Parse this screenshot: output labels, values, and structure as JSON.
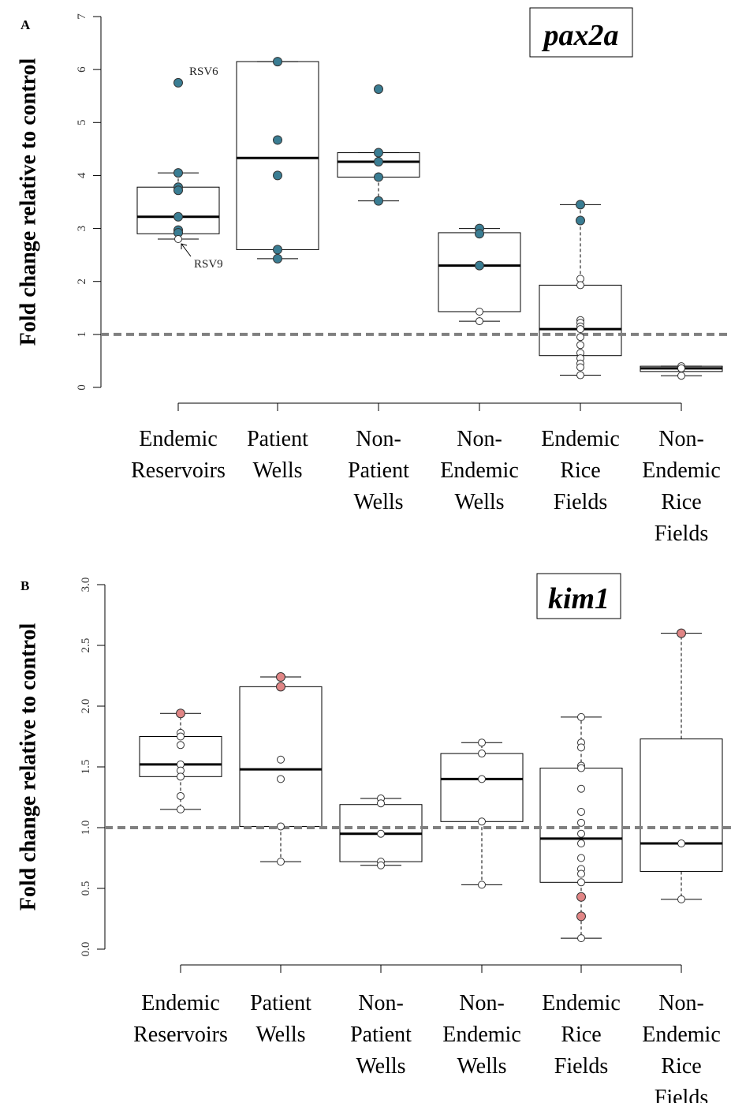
{
  "colors": {
    "pax2a_highlight": "#3a7d93",
    "kim1_highlight": "#e08585",
    "reference_line": "#808080",
    "open_point": "#ffffff"
  },
  "chart_data": [
    {
      "panel": "A",
      "type": "box",
      "title": "pax2a",
      "ylabel": "Fold change relative to control",
      "ylim": [
        0,
        7
      ],
      "yticks": [
        "0",
        "1",
        "2",
        "3",
        "4",
        "5",
        "6",
        "7"
      ],
      "reference_line": 1,
      "categories": [
        [
          "Endemic",
          "Reservoirs"
        ],
        [
          "Patient",
          "Wells"
        ],
        [
          "Non-",
          "Patient",
          "Wells"
        ],
        [
          "Non-",
          "Endemic",
          "Wells"
        ],
        [
          "Endemic",
          "Rice",
          "Fields"
        ],
        [
          "Non-",
          "Endemic",
          "Rice",
          "Fields"
        ]
      ],
      "boxes": [
        {
          "whisker_low": 2.8,
          "q1": 2.9,
          "median": 3.22,
          "q3": 3.78,
          "whisker_high": 4.05
        },
        {
          "whisker_low": 2.43,
          "q1": 2.6,
          "median": 4.33,
          "q3": 6.15,
          "whisker_high": 6.15
        },
        {
          "whisker_low": 3.52,
          "q1": 3.97,
          "median": 4.26,
          "q3": 4.43,
          "whisker_high": 4.43
        },
        {
          "whisker_low": 1.25,
          "q1": 1.43,
          "median": 2.3,
          "q3": 2.92,
          "whisker_high": 3.0
        },
        {
          "whisker_low": 0.23,
          "q1": 0.6,
          "median": 1.1,
          "q3": 1.93,
          "whisker_high": 3.45
        },
        {
          "whisker_low": 0.22,
          "q1": 0.3,
          "median": 0.36,
          "q3": 0.4,
          "whisker_high": 0.4
        }
      ],
      "points": [
        [
          {
            "y": 5.75,
            "highlight": true
          },
          {
            "y": 4.05,
            "highlight": true
          },
          {
            "y": 3.78,
            "highlight": true
          },
          {
            "y": 3.72,
            "highlight": true
          },
          {
            "y": 3.22,
            "highlight": true
          },
          {
            "y": 2.97,
            "highlight": true
          },
          {
            "y": 2.92,
            "highlight": true
          },
          {
            "y": 2.8,
            "highlight": false
          }
        ],
        [
          {
            "y": 6.15,
            "highlight": true
          },
          {
            "y": 4.67,
            "highlight": true
          },
          {
            "y": 4.0,
            "highlight": true
          },
          {
            "y": 2.6,
            "highlight": true
          },
          {
            "y": 2.43,
            "highlight": true
          }
        ],
        [
          {
            "y": 5.63,
            "highlight": true
          },
          {
            "y": 4.43,
            "highlight": true
          },
          {
            "y": 4.26,
            "highlight": true
          },
          {
            "y": 3.97,
            "highlight": true
          },
          {
            "y": 3.52,
            "highlight": true
          }
        ],
        [
          {
            "y": 3.0,
            "highlight": true
          },
          {
            "y": 2.9,
            "highlight": true
          },
          {
            "y": 2.3,
            "highlight": true
          },
          {
            "y": 1.43,
            "highlight": false
          },
          {
            "y": 1.25,
            "highlight": false
          }
        ],
        [
          {
            "y": 3.45,
            "highlight": true
          },
          {
            "y": 3.15,
            "highlight": true
          },
          {
            "y": 2.05,
            "highlight": false
          },
          {
            "y": 1.93,
            "highlight": false
          },
          {
            "y": 1.27,
            "highlight": false
          },
          {
            "y": 1.22,
            "highlight": false
          },
          {
            "y": 1.15,
            "highlight": false
          },
          {
            "y": 1.1,
            "highlight": false
          },
          {
            "y": 0.95,
            "highlight": false
          },
          {
            "y": 0.8,
            "highlight": false
          },
          {
            "y": 0.65,
            "highlight": false
          },
          {
            "y": 0.55,
            "highlight": false
          },
          {
            "y": 0.45,
            "highlight": false
          },
          {
            "y": 0.38,
            "highlight": false
          },
          {
            "y": 0.23,
            "highlight": false
          }
        ],
        [
          {
            "y": 0.4,
            "highlight": false
          },
          {
            "y": 0.36,
            "highlight": false
          },
          {
            "y": 0.22,
            "highlight": false
          }
        ]
      ],
      "annotations": [
        {
          "text": "RSV6",
          "category": 0,
          "y": 5.75
        },
        {
          "text": "RSV9",
          "category": 0,
          "y": 2.8
        }
      ]
    },
    {
      "panel": "B",
      "type": "box",
      "title": "kim1",
      "ylabel": "Fold change relative to control",
      "ylim": [
        0,
        3
      ],
      "yticks": [
        "0.0",
        "0.5",
        "1.0",
        "1.5",
        "2.0",
        "2.5",
        "3.0"
      ],
      "reference_line": 1,
      "categories": [
        [
          "Endemic",
          "Reservoirs"
        ],
        [
          "Patient",
          "Wells"
        ],
        [
          "Non-",
          "Patient",
          "Wells"
        ],
        [
          "Non-",
          "Endemic",
          "Wells"
        ],
        [
          "Endemic",
          "Rice",
          "Fields"
        ],
        [
          "Non-",
          "Endemic",
          "Rice",
          "Fields"
        ]
      ],
      "boxes": [
        {
          "whisker_low": 1.15,
          "q1": 1.42,
          "median": 1.52,
          "q3": 1.75,
          "whisker_high": 1.94
        },
        {
          "whisker_low": 0.72,
          "q1": 1.01,
          "median": 1.48,
          "q3": 2.16,
          "whisker_high": 2.24
        },
        {
          "whisker_low": 0.69,
          "q1": 0.72,
          "median": 0.95,
          "q3": 1.19,
          "whisker_high": 1.24
        },
        {
          "whisker_low": 0.53,
          "q1": 1.05,
          "median": 1.4,
          "q3": 1.61,
          "whisker_high": 1.7
        },
        {
          "whisker_low": 0.09,
          "q1": 0.55,
          "median": 0.91,
          "q3": 1.49,
          "whisker_high": 1.91
        },
        {
          "whisker_low": 0.41,
          "q1": 0.64,
          "median": 0.87,
          "q3": 1.73,
          "whisker_high": 2.6
        }
      ],
      "points": [
        [
          {
            "y": 1.94,
            "highlight": true
          },
          {
            "y": 1.78,
            "highlight": false
          },
          {
            "y": 1.75,
            "highlight": false
          },
          {
            "y": 1.68,
            "highlight": false
          },
          {
            "y": 1.52,
            "highlight": false
          },
          {
            "y": 1.47,
            "highlight": false
          },
          {
            "y": 1.42,
            "highlight": false
          },
          {
            "y": 1.26,
            "highlight": false
          },
          {
            "y": 1.15,
            "highlight": false
          }
        ],
        [
          {
            "y": 2.24,
            "highlight": true
          },
          {
            "y": 2.16,
            "highlight": true
          },
          {
            "y": 1.56,
            "highlight": false
          },
          {
            "y": 1.4,
            "highlight": false
          },
          {
            "y": 1.01,
            "highlight": false
          },
          {
            "y": 0.72,
            "highlight": false
          }
        ],
        [
          {
            "y": 1.24,
            "highlight": false
          },
          {
            "y": 1.2,
            "highlight": false
          },
          {
            "y": 0.95,
            "highlight": false
          },
          {
            "y": 0.72,
            "highlight": false
          },
          {
            "y": 0.69,
            "highlight": false
          }
        ],
        [
          {
            "y": 1.7,
            "highlight": false
          },
          {
            "y": 1.61,
            "highlight": false
          },
          {
            "y": 1.4,
            "highlight": false
          },
          {
            "y": 1.05,
            "highlight": false
          },
          {
            "y": 0.53,
            "highlight": false
          }
        ],
        [
          {
            "y": 1.91,
            "highlight": false
          },
          {
            "y": 1.7,
            "highlight": false
          },
          {
            "y": 1.66,
            "highlight": false
          },
          {
            "y": 1.51,
            "highlight": false
          },
          {
            "y": 1.49,
            "highlight": false
          },
          {
            "y": 1.32,
            "highlight": false
          },
          {
            "y": 1.13,
            "highlight": false
          },
          {
            "y": 1.04,
            "highlight": false
          },
          {
            "y": 0.95,
            "highlight": false
          },
          {
            "y": 0.87,
            "highlight": false
          },
          {
            "y": 0.75,
            "highlight": false
          },
          {
            "y": 0.66,
            "highlight": false
          },
          {
            "y": 0.62,
            "highlight": false
          },
          {
            "y": 0.55,
            "highlight": false
          },
          {
            "y": 0.43,
            "highlight": true
          },
          {
            "y": 0.27,
            "highlight": true
          },
          {
            "y": 0.09,
            "highlight": false
          }
        ],
        [
          {
            "y": 2.6,
            "highlight": true
          },
          {
            "y": 0.87,
            "highlight": false
          },
          {
            "y": 0.41,
            "highlight": false
          }
        ]
      ],
      "annotations": []
    }
  ]
}
